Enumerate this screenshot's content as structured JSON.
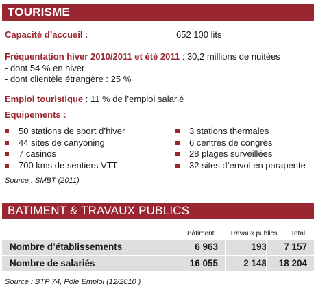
{
  "tourisme": {
    "title": "TOURISME",
    "capacite_label": "Capacité d’accueil :",
    "capacite_value": "652 100 lits",
    "frequentation_label": "Fréquentation hiver 2010/2011 et été 2011",
    "frequentation_value": ": 30,2 millions de nuitées",
    "dont_hiver": "- dont 54 % en hiver",
    "dont_etrangere": "- dont clientèle étrangère : 25 %",
    "emploi_label": "Emploi touristique",
    "emploi_value": ":  11 % de l’emploi salarié",
    "equipements_label": "Equipements :",
    "equipements_left": [
      "50 stations de sport d’hiver",
      "44 sites de canyoning",
      "7 casinos",
      "700 kms de sentiers VTT"
    ],
    "equipements_right": [
      "3 stations thermales",
      "6 centres de congrès",
      "28 plages surveillées",
      "32 sites d’envol en parapente"
    ],
    "source": "Source : SMBT (2011)"
  },
  "btp": {
    "title": "BATIMENT & TRAVAUX PUBLICS",
    "columns": [
      "Bâtiment",
      "Travaux publics",
      "Total"
    ],
    "rows": [
      {
        "label": "Nombre d’établissements",
        "values": [
          "6 963",
          "193",
          "7 157"
        ]
      },
      {
        "label": "Nombre de salariés",
        "values": [
          "16 055",
          "2 148",
          "18 204"
        ]
      }
    ],
    "source": "Source : BTP 74, Pôle Emploi (12/2010 )"
  },
  "colors": {
    "accent": "#9a2631",
    "row_background": "#dedede"
  }
}
